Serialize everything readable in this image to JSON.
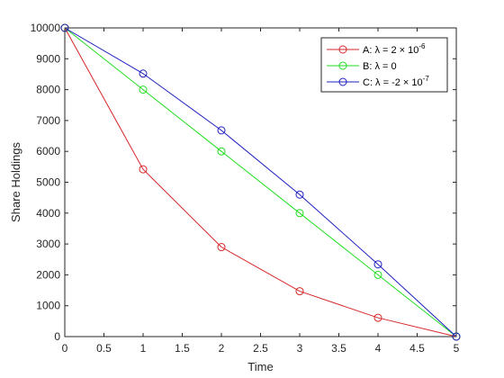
{
  "chart_data": {
    "type": "line",
    "title": "",
    "xlabel": "Time",
    "ylabel": "Share Holdings",
    "xlim": [
      0,
      5
    ],
    "ylim": [
      0,
      10000
    ],
    "xticks": [
      "0",
      "0.5",
      "1",
      "1.5",
      "2",
      "2.5",
      "3",
      "3.5",
      "4",
      "4.5",
      "5"
    ],
    "yticks": [
      "0",
      "1000",
      "2000",
      "3000",
      "4000",
      "5000",
      "6000",
      "7000",
      "8000",
      "9000",
      "10000"
    ],
    "grid": false,
    "legend_position": "top-right",
    "x": [
      0,
      1,
      2,
      3,
      4,
      5
    ],
    "series": [
      {
        "name": "A: λ = 2 × 10^-6",
        "label_main": "A: λ = 2 × 10",
        "label_sup": "-6",
        "color": "#d62728",
        "marker": "circle",
        "values": [
          10000,
          5420,
          2900,
          1470,
          610,
          0
        ]
      },
      {
        "name": "B: λ = 0",
        "label_main": "B: λ = 0",
        "label_sup": "",
        "color": "#22dd22",
        "marker": "circle",
        "values": [
          10000,
          8000,
          6000,
          4000,
          2000,
          0
        ]
      },
      {
        "name": "C: λ = -2 × 10^-7",
        "label_main": "C: λ = -2 × 10",
        "label_sup": "-7",
        "color": "#1f1fbf",
        "marker": "circle",
        "values": [
          10000,
          8520,
          6680,
          4600,
          2340,
          0
        ]
      }
    ]
  }
}
